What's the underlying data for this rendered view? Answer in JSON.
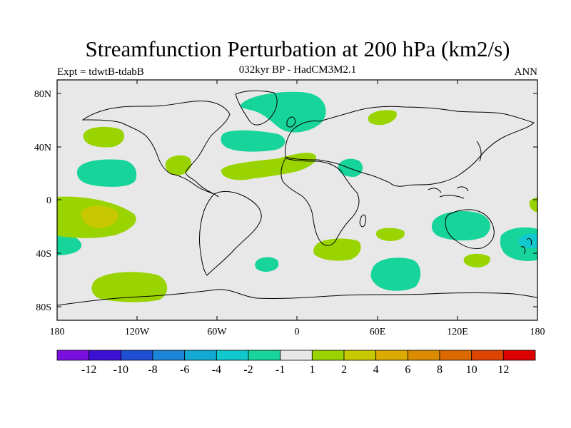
{
  "title": "Streamfunction Perturbation at 200 hPa (km2/s)",
  "subtitle_left": "Expt = tdwtB-tdabB",
  "subtitle_center": "032kyr BP - HadCM3M2.1",
  "subtitle_right": "ANN",
  "axes": {
    "lon_ticks": [
      "180",
      "120W",
      "60W",
      "0",
      "60E",
      "120E",
      "180"
    ],
    "lat_ticks": [
      "80N",
      "40N",
      "0",
      "40S",
      "80S"
    ]
  },
  "colorbar": {
    "colors": [
      "#7b0fe0",
      "#3d10d6",
      "#1f4fd4",
      "#1b86d8",
      "#12aad4",
      "#12c8cf",
      "#16d49a",
      "#e8e8e8",
      "#9ad400",
      "#c8c800",
      "#dcaa00",
      "#dc8c00",
      "#dc6a00",
      "#dc4400",
      "#dc0000"
    ],
    "labels": [
      "-12",
      "-10",
      "-8",
      "-6",
      "-4",
      "-2",
      "-1",
      "1",
      "2",
      "4",
      "6",
      "8",
      "10",
      "12"
    ]
  },
  "colors": {
    "ocean": "#e8e8e8",
    "neg_1_2": "#16d49a",
    "neg_2_4": "#12c8cf",
    "pos_1_2": "#9ad400",
    "pos_2_4": "#c8c800"
  },
  "chart_data": {
    "type": "contour_map",
    "variable": "Streamfunction Perturbation at 200 hPa",
    "units": "km2/s",
    "projection": "cylindrical equidistant",
    "lon_range": [
      -180,
      180
    ],
    "lat_range": [
      -90,
      90
    ],
    "contour_levels": [
      -12,
      -10,
      -8,
      -6,
      -4,
      -2,
      -1,
      1,
      2,
      4,
      6,
      8,
      10,
      12
    ],
    "regions": [
      {
        "sign": "positive",
        "band": "1 to 2",
        "center_lon": -140,
        "center_lat": 48
      },
      {
        "sign": "positive",
        "band": "1 to 2",
        "center_lon": -90,
        "center_lat": 28
      },
      {
        "sign": "positive",
        "band": "1 to 2",
        "center_lon": -20,
        "center_lat": 22
      },
      {
        "sign": "positive",
        "band": "1 to 2",
        "center_lon": 65,
        "center_lat": 62
      },
      {
        "sign": "positive",
        "band": "1 to 2",
        "center_lon": -150,
        "center_lat": -12
      },
      {
        "sign": "positive",
        "band": "2 to 4",
        "center_lon": -150,
        "center_lat": -12
      },
      {
        "sign": "positive",
        "band": "1 to 2",
        "center_lon": 30,
        "center_lat": -35
      },
      {
        "sign": "positive",
        "band": "1 to 2",
        "center_lon": 70,
        "center_lat": -25
      },
      {
        "sign": "positive",
        "band": "1 to 2",
        "center_lon": 135,
        "center_lat": -44
      },
      {
        "sign": "positive",
        "band": "1 to 2",
        "center_lon": 178,
        "center_lat": -3
      },
      {
        "sign": "positive",
        "band": "1 to 2",
        "center_lon": -130,
        "center_lat": -63
      },
      {
        "sign": "negative",
        "band": "-1 to -2",
        "center_lon": -150,
        "center_lat": 20
      },
      {
        "sign": "negative",
        "band": "-1 to -2",
        "center_lon": -40,
        "center_lat": 45
      },
      {
        "sign": "negative",
        "band": "-1 to -2",
        "center_lon": -5,
        "center_lat": 70
      },
      {
        "sign": "negative",
        "band": "-1 to -2",
        "center_lon": 40,
        "center_lat": 25
      },
      {
        "sign": "negative",
        "band": "-1 to -2",
        "center_lon": 120,
        "center_lat": -20
      },
      {
        "sign": "negative",
        "band": "-1 to -2",
        "center_lon": 170,
        "center_lat": -30
      },
      {
        "sign": "negative",
        "band": "-2 to -4",
        "center_lon": 175,
        "center_lat": -28
      },
      {
        "sign": "negative",
        "band": "-1 to -2",
        "center_lon": 67,
        "center_lat": -60
      },
      {
        "sign": "negative",
        "band": "-1 to -2",
        "center_lon": -165,
        "center_lat": -31
      },
      {
        "sign": "negative",
        "band": "-1 to -2",
        "center_lon": -22,
        "center_lat": -48
      }
    ]
  }
}
